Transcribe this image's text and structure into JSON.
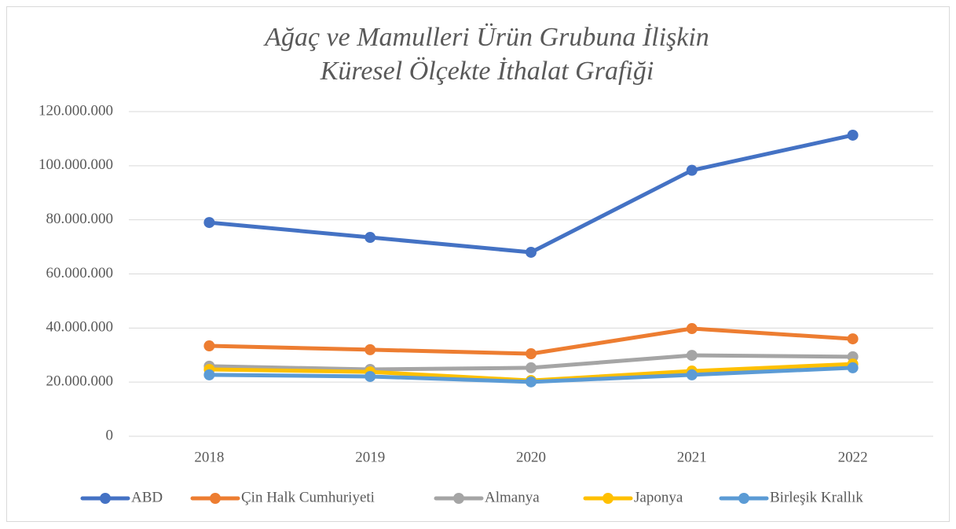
{
  "chart_data": {
    "type": "line",
    "title": [
      "Ağaç ve Mamulleri Ürün Grubuna İlişkin",
      "Küresel Ölçekte İthalat Grafiği"
    ],
    "categories": [
      "2018",
      "2019",
      "2020",
      "2021",
      "2022"
    ],
    "series": [
      {
        "name": "ABD",
        "color": "#4472c4",
        "values": [
          79000000,
          73500000,
          68000000,
          98300000,
          111300000
        ]
      },
      {
        "name": "Çin Halk Cumhuriyeti",
        "color": "#ed7d31",
        "values": [
          33400000,
          32000000,
          30500000,
          39800000,
          36000000
        ]
      },
      {
        "name": "Almanya",
        "color": "#a5a5a5",
        "values": [
          25900000,
          24700000,
          25300000,
          29900000,
          29400000
        ]
      },
      {
        "name": "Japonya",
        "color": "#ffc000",
        "values": [
          24700000,
          23800000,
          20600000,
          24100000,
          26700000
        ]
      },
      {
        "name": "Birleşik Krallık",
        "color": "#5b9bd5",
        "values": [
          22700000,
          22100000,
          20100000,
          22700000,
          25300000
        ]
      }
    ],
    "ylim": [
      0,
      120000000
    ],
    "yticks": [
      0,
      {
        "value": 20000000,
        "label": "20.000.000"
      },
      {
        "value": 40000000,
        "label": "40.000.000"
      },
      {
        "value": 60000000,
        "label": "60.000.000"
      },
      {
        "value": 80000000,
        "label": "80.000.000"
      },
      {
        "value": 100000000,
        "label": "100.000.000"
      },
      {
        "value": 120000000,
        "label": "120.000.000"
      }
    ],
    "grid": true,
    "legend": "bottom"
  }
}
